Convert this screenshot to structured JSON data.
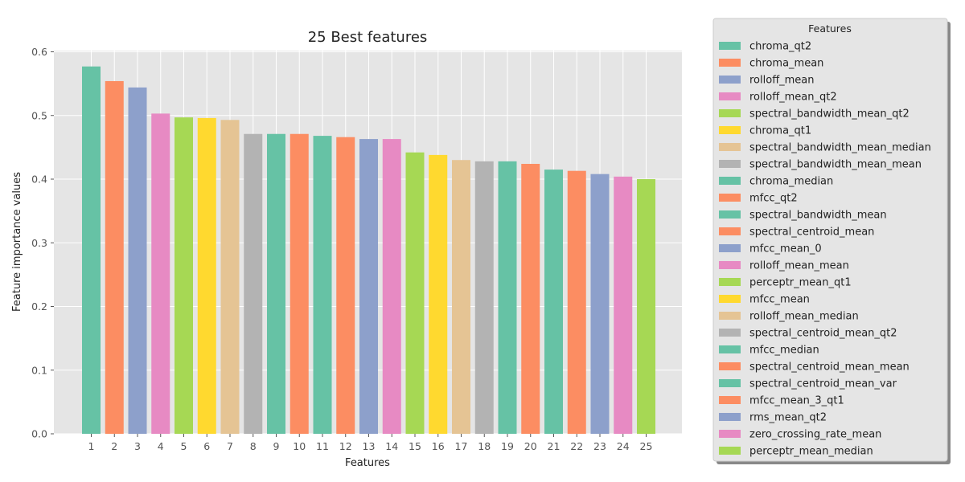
{
  "chart_data": {
    "type": "bar",
    "title": "25 Best features",
    "xlabel": "Features",
    "ylabel": "Feature importance values",
    "ylim": [
      0,
      0.6
    ],
    "yticks": [
      "0.0",
      "0.1",
      "0.2",
      "0.3",
      "0.4",
      "0.5",
      "0.6"
    ],
    "grid": true,
    "legend_position": "outside-right",
    "legend_title": "Features",
    "categories": [
      "1",
      "2",
      "3",
      "4",
      "5",
      "6",
      "7",
      "8",
      "9",
      "10",
      "11",
      "12",
      "13",
      "14",
      "15",
      "16",
      "17",
      "18",
      "19",
      "20",
      "21",
      "22",
      "23",
      "24",
      "25"
    ],
    "values": [
      0.577,
      0.554,
      0.544,
      0.503,
      0.497,
      0.496,
      0.493,
      0.471,
      0.471,
      0.471,
      0.468,
      0.466,
      0.463,
      0.463,
      0.442,
      0.438,
      0.43,
      0.428,
      0.428,
      0.424,
      0.415,
      0.413,
      0.408,
      0.404,
      0.4
    ],
    "features": [
      "chroma_qt2",
      "chroma_mean",
      "rolloff_mean",
      "rolloff_mean_qt2",
      "spectral_bandwidth_mean_qt2",
      "chroma_qt1",
      "spectral_bandwidth_mean_median",
      "spectral_bandwidth_mean_mean",
      "chroma_median",
      "mfcc_qt2",
      "spectral_bandwidth_mean",
      "spectral_centroid_mean",
      "mfcc_mean_0",
      "rolloff_mean_mean",
      "perceptr_mean_qt1",
      "mfcc_mean",
      "rolloff_mean_median",
      "spectral_centroid_mean_qt2",
      "mfcc_median",
      "spectral_centroid_mean_mean",
      "spectral_centroid_mean_var",
      "mfcc_mean_3_qt1",
      "rms_mean_qt2",
      "zero_crossing_rate_mean",
      "perceptr_mean_median"
    ],
    "colors": [
      "#66c2a5",
      "#fc8d62",
      "#8da0cb",
      "#e78ac3",
      "#a6d854",
      "#ffd92f",
      "#e5c494",
      "#b3b3b3",
      "#66c2a5",
      "#fc8d62",
      "#66c2a5",
      "#fc8d62",
      "#8da0cb",
      "#e78ac3",
      "#a6d854",
      "#ffd92f",
      "#e5c494",
      "#b3b3b3",
      "#66c2a5",
      "#fc8d62",
      "#66c2a5",
      "#fc8d62",
      "#8da0cb",
      "#e78ac3",
      "#a6d854"
    ]
  },
  "theme": {
    "plot_background": "#e5e5e5",
    "grid_color": "#ffffff",
    "text_color": "#555555",
    "title_color": "#222222"
  }
}
